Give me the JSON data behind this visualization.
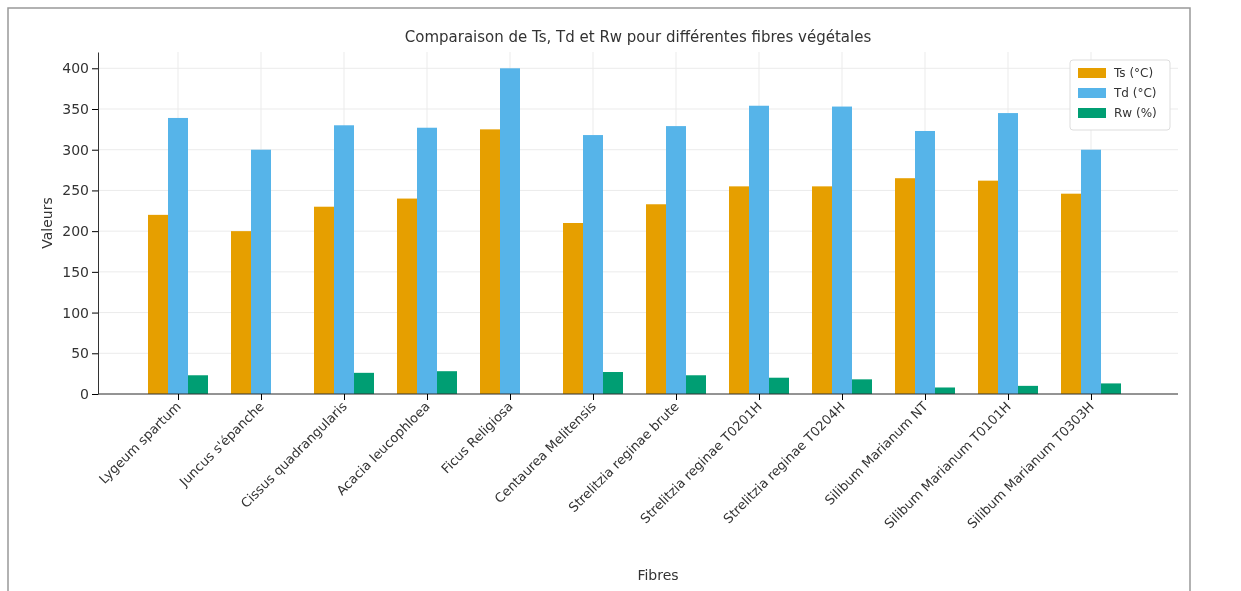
{
  "chart_data": {
    "type": "bar",
    "title": "Comparaison de Ts, Td et Rw pour différentes fibres végétales",
    "xlabel": "Fibres",
    "ylabel": "Valeurs",
    "categories": [
      "Lygeum spartum",
      "Juncus s'épanche",
      "Cissus quadrangularis",
      "Acacia leucophloea",
      "Ficus Religiosa",
      "Centaurea Melitensis",
      "Strelitzia reginae brute",
      "Strelitzia reginae T0201H",
      "Strelitzia reginae T0204H",
      "Silibum Marianum NT",
      "Silibum Marianum T0101H",
      "Silibum Marianum T0303H"
    ],
    "series": [
      {
        "name": "Ts (°C)",
        "color": "#e69f00",
        "values": [
          220,
          200,
          230,
          240,
          325,
          210,
          233,
          255,
          255,
          265,
          262,
          246
        ]
      },
      {
        "name": "Td (°C)",
        "color": "#56b4e9",
        "values": [
          339,
          300,
          330,
          327,
          400,
          318,
          329,
          354,
          353,
          323,
          345,
          300
        ]
      },
      {
        "name": "Rw (%)",
        "color": "#009e73",
        "values": [
          23,
          null,
          26,
          28,
          null,
          27,
          23,
          20,
          18,
          8,
          10,
          13
        ]
      }
    ],
    "ylim": [
      0,
      420
    ],
    "yticks": [
      0,
      50,
      100,
      150,
      200,
      250,
      300,
      350,
      400
    ],
    "grid": true,
    "legend": "top right"
  }
}
